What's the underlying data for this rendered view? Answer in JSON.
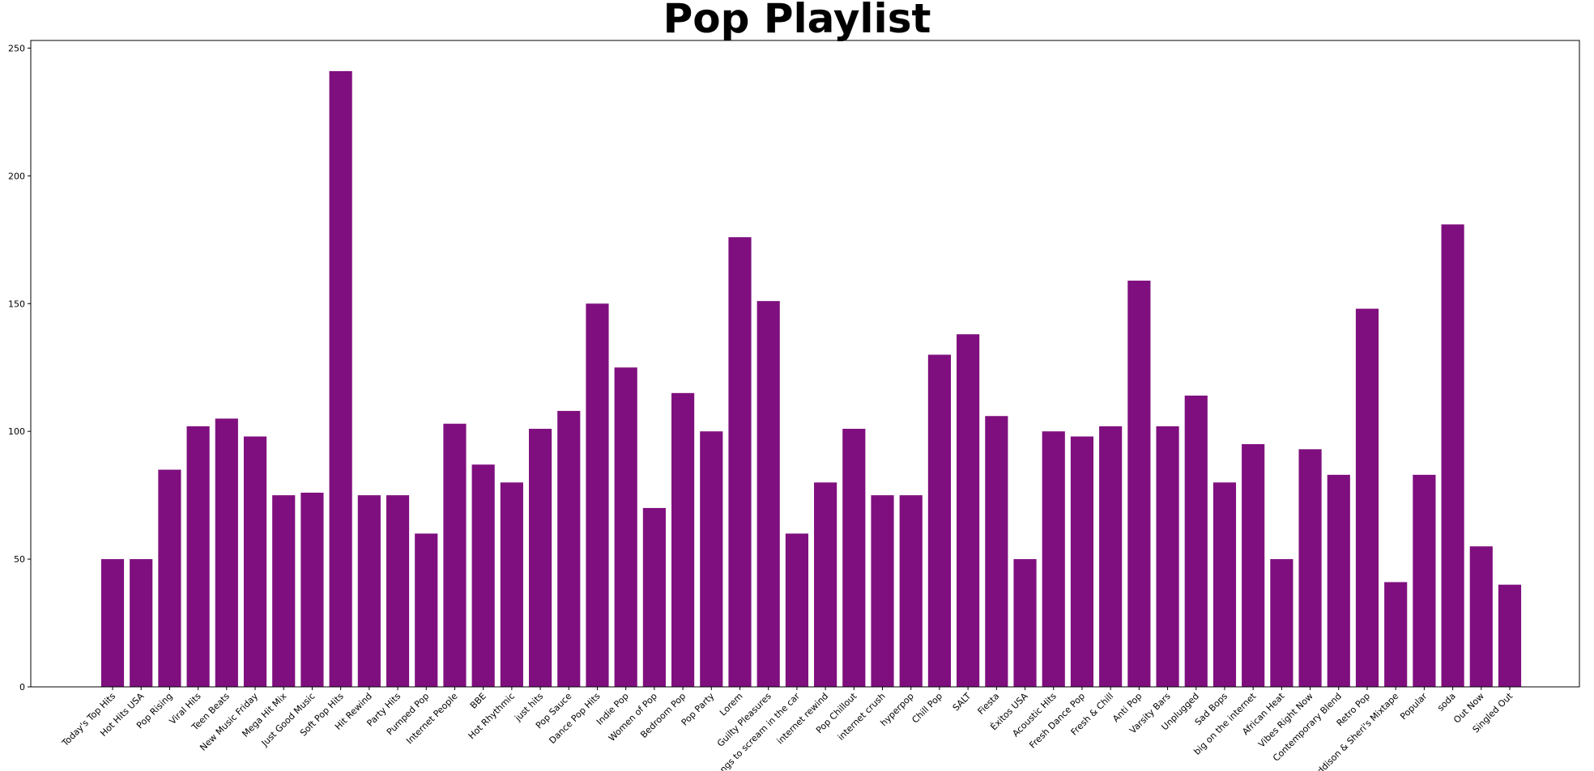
{
  "chart_data": {
    "type": "bar",
    "title": "Pop Playlist",
    "xlabel": "",
    "ylabel": "",
    "ylim": [
      0,
      253
    ],
    "yticks": [
      0,
      50,
      100,
      150,
      200,
      250
    ],
    "bar_color": "#7f0f7e",
    "grid": false,
    "categories": [
      "Today's Top Hits",
      "Hot Hits USA",
      "Pop Rising",
      "Viral Hits",
      "Teen Beats",
      "New Music Friday",
      "Mega Hit Mix",
      "Just Good Music",
      "Soft Pop Hits",
      "Hit Rewind",
      "Party Hits",
      "Pumped Pop",
      "Internet People",
      "BBE",
      "Hot Rhythmic",
      "just hits",
      "Pop Sauce",
      "Dance Pop Hits",
      "Indie Pop",
      "Women of Pop",
      "Bedroom Pop",
      "Pop Party",
      "Lorem",
      "Guilty Pleasures",
      "songs to scream in the car",
      "internet rewind",
      "Pop Chillout",
      "internet crush",
      "hyperpop",
      "Chill Pop",
      "SALT",
      "Fiesta",
      "Éxitos USA",
      "Acoustic Hits",
      "Fresh Dance Pop",
      "Fresh & Chill",
      "Anti Pop",
      "Varsity Bars",
      "Unplugged",
      "Sad Bops",
      "big on the internet",
      "African Heat",
      "Vibes Right Now",
      "Contemporary Blend",
      "Retro Pop",
      "Addison & Sheri's Mixtape",
      "Popular",
      "soda",
      "Out Now",
      "Singled Out"
    ],
    "values": [
      50,
      50,
      85,
      102,
      105,
      98,
      75,
      76,
      241,
      75,
      75,
      60,
      103,
      87,
      80,
      101,
      108,
      150,
      125,
      70,
      115,
      100,
      176,
      151,
      60,
      80,
      101,
      75,
      75,
      130,
      138,
      106,
      50,
      100,
      98,
      102,
      159,
      102,
      114,
      80,
      95,
      50,
      93,
      83,
      148,
      41,
      83,
      181,
      55,
      40
    ]
  }
}
